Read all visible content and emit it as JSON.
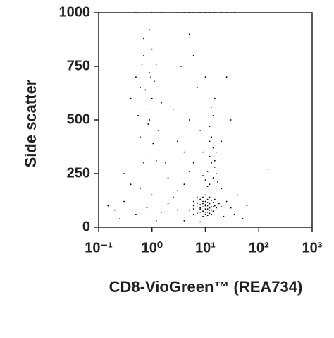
{
  "chart_data": {
    "type": "scatter",
    "x_label": "CD8-VioGreen™ (REA734)",
    "y_label": "Side scatter",
    "xscale": "log",
    "xlim": [
      0.1,
      1000
    ],
    "ylim": [
      0,
      1000
    ],
    "xticks": [
      {
        "value": 0.1,
        "label": "10⁻¹"
      },
      {
        "value": 1,
        "label": "10⁰"
      },
      {
        "value": 10,
        "label": "10¹"
      },
      {
        "value": 100,
        "label": "10²"
      },
      {
        "value": 1000,
        "label": "10³"
      }
    ],
    "yticks": [
      0,
      250,
      500,
      750,
      1000
    ],
    "color": "#000000",
    "x": [
      8,
      10,
      12,
      9,
      11,
      7,
      13,
      10,
      6,
      14,
      9,
      11,
      8,
      12,
      10,
      7,
      15,
      9,
      11,
      13,
      5,
      6,
      16,
      10,
      12,
      8,
      9,
      14,
      11,
      7,
      10,
      13,
      8,
      12,
      9,
      18,
      6,
      11,
      10,
      15,
      7,
      12,
      9,
      14,
      11,
      8,
      10,
      13,
      6,
      20,
      12,
      14,
      11,
      13,
      15,
      12,
      16,
      10,
      14,
      13,
      11,
      15,
      12,
      17,
      14,
      13,
      16,
      9,
      12,
      15,
      0.7,
      0.9,
      0.6,
      1.0,
      0.8,
      0.5,
      1.2,
      0.7,
      0.9,
      1.1,
      0.6,
      0.8,
      1.3,
      0.7,
      1.0,
      0.9,
      0.4,
      1.5,
      0.75,
      0.85,
      0.65,
      1.05,
      0.55,
      0.95,
      1.2,
      0.2,
      0.3,
      0.5,
      0.8,
      1.5,
      2,
      3,
      2.5,
      1,
      0.4,
      0.15,
      0.6,
      2,
      3,
      4,
      5,
      1.8,
      0.3,
      25,
      30,
      40,
      20,
      35,
      60,
      50,
      0.25,
      1.2,
      4,
      8,
      22,
      3,
      5,
      7,
      4,
      6,
      2.5,
      8,
      20,
      25,
      5,
      9,
      3.5,
      6,
      30,
      10,
      0.5,
      1,
      1.5,
      2,
      3,
      4,
      5,
      6,
      8,
      10,
      12,
      15,
      20,
      25,
      35,
      150
    ],
    "values": [
      90,
      100,
      80,
      120,
      70,
      110,
      95,
      60,
      85,
      115,
      75,
      130,
      105,
      140,
      85,
      65,
      100,
      95,
      55,
      125,
      80,
      120,
      90,
      150,
      110,
      70,
      140,
      75,
      100,
      95,
      120,
      60,
      130,
      90,
      50,
      110,
      100,
      85,
      70,
      130,
      140,
      65,
      110,
      95,
      115,
      85,
      105,
      80,
      60,
      95,
      200,
      230,
      260,
      300,
      280,
      330,
      250,
      220,
      370,
      420,
      190,
      310,
      470,
      210,
      520,
      560,
      350,
      240,
      400,
      600,
      800,
      720,
      650,
      600,
      550,
      700,
      760,
      880,
      500,
      680,
      420,
      350,
      450,
      300,
      830,
      920,
      600,
      580,
      640,
      480,
      760,
      390,
      520,
      700,
      310,
      80,
      120,
      60,
      90,
      70,
      110,
      80,
      140,
      150,
      200,
      100,
      180,
      230,
      170,
      200,
      260,
      300,
      250,
      120,
      90,
      150,
      180,
      60,
      100,
      40,
      40,
      30,
      30,
      25,
      50,
      400,
      500,
      650,
      350,
      800,
      550,
      450,
      400,
      700,
      900,
      350,
      750,
      300,
      500,
      700,
      1000,
      1000,
      1000,
      1000,
      1000,
      1000,
      1000,
      1000,
      1000,
      1000,
      1000,
      1000,
      1000,
      1000,
      1000,
      270
    ]
  }
}
